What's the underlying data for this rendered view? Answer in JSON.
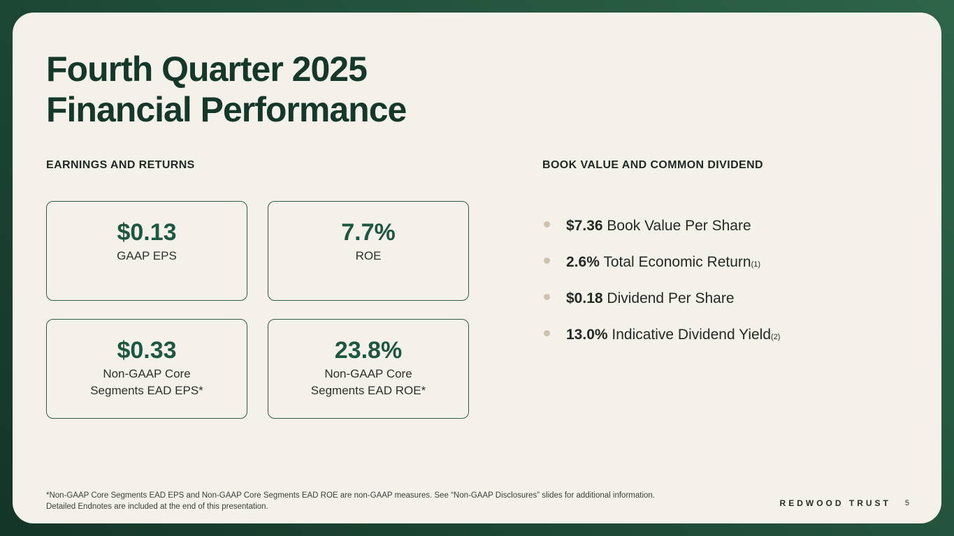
{
  "slide": {
    "title_line1": "Fourth Quarter 2025",
    "title_line2": "Financial Performance",
    "logo_text": "REDWOOD TRUST",
    "page_number": "5"
  },
  "earnings_section": {
    "heading": "EARNINGS AND RETURNS",
    "cards": [
      {
        "value": "$0.13",
        "label": "GAAP EPS"
      },
      {
        "value": "7.7%",
        "label": "ROE"
      },
      {
        "value": "$0.33",
        "label": "Non-GAAP Core\nSegments EAD EPS*"
      },
      {
        "value": "23.8%",
        "label": "Non-GAAP Core\nSegments EAD ROE*"
      }
    ]
  },
  "book_value_section": {
    "heading": "BOOK VALUE AND COMMON DIVIDEND",
    "bullets": [
      {
        "value": "$7.36",
        "label": " Book Value Per Share",
        "note": ""
      },
      {
        "value": "2.6%",
        "label": " Total Economic Return",
        "note": "(1)"
      },
      {
        "value": "$0.18",
        "label": " Dividend Per Share",
        "note": ""
      },
      {
        "value": "13.0%",
        "label": " Indicative Dividend Yield",
        "note": "(2)"
      }
    ]
  },
  "footnote": {
    "line1": "*Non-GAAP Core Segments EAD EPS and Non-GAAP Core Segments EAD ROE are non-GAAP measures. See “Non-GAAP Disclosures” slides for additional information.",
    "line2": "Detailed Endnotes are included at the end of this presentation."
  },
  "colors": {
    "background_green": "#1e4b37",
    "slide_cream": "#f4f1ea",
    "accent_green": "#1d5741",
    "bullet_dot": "#cfc3ab"
  }
}
